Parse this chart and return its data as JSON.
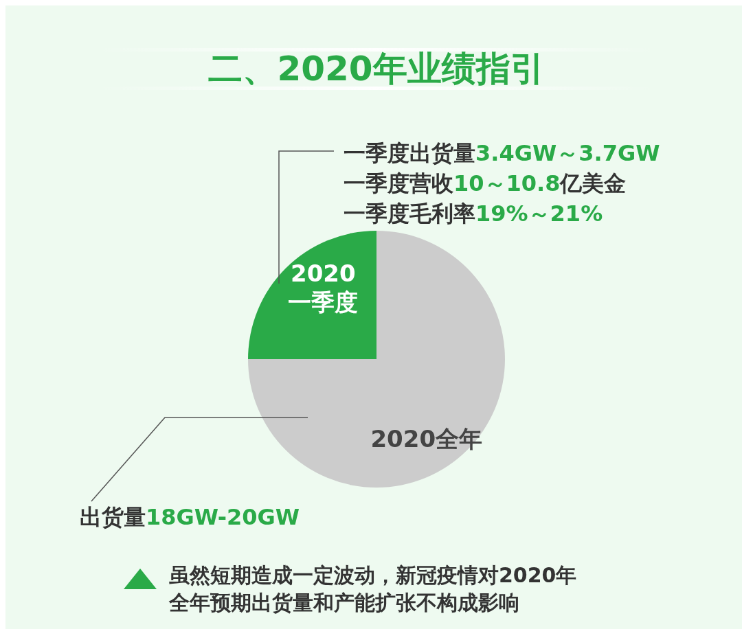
{
  "chart_data": {
    "type": "pie",
    "title": "二、2020年业绩指引",
    "categories": [
      "2020全年",
      "2020\n一季度"
    ],
    "values": [
      75,
      25
    ],
    "colors": [
      "#cccccc",
      "#2aaa48"
    ],
    "annotations": [
      "一季度出货量",
      "3.4GW～3.7GW",
      "一季度营收",
      "10～10.8",
      "亿美金",
      "一季度毛利率",
      "19%～21%",
      "出货量",
      "18GW-20GW",
      "虽然短期造成一定波动，新冠疫情对2020年",
      "全年预期出货量和产能扩张不构成影响"
    ]
  }
}
